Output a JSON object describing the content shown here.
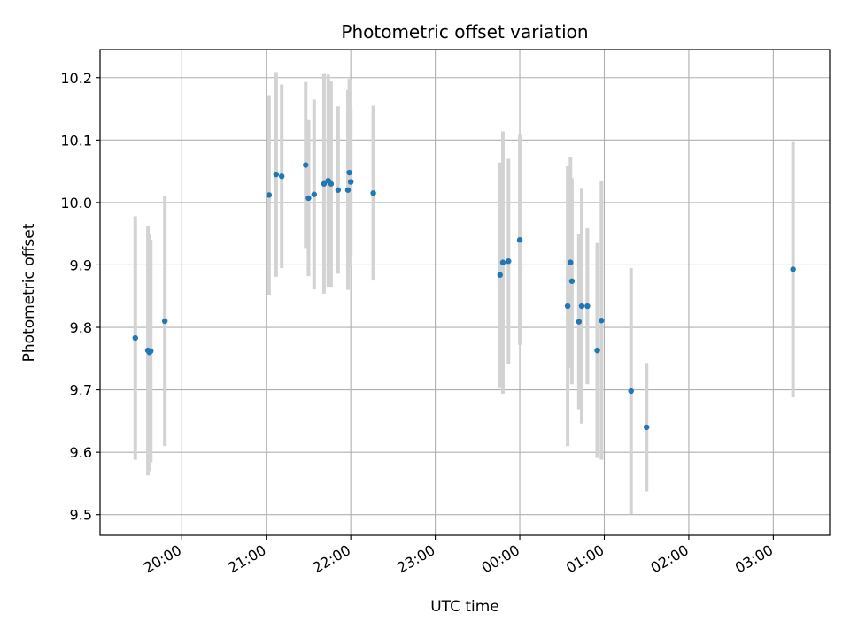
{
  "chart_data": {
    "type": "scatter",
    "title": "Photometric offset variation",
    "xlabel": "UTC time",
    "ylabel": "Photometric offset",
    "x_axis": "datetime",
    "x_tick_labels": [
      "20:00",
      "21:00",
      "22:00",
      "23:00",
      "00:00",
      "01:00",
      "02:00",
      "03:00"
    ],
    "y_ticks": [
      9.5,
      9.6,
      9.7,
      9.8,
      9.9,
      10.0,
      10.1,
      10.2
    ],
    "y_tick_labels": [
      "9.5",
      "9.6",
      "9.7",
      "9.8",
      "9.9",
      "10.0",
      "10.1",
      "10.2"
    ],
    "ylim": [
      9.467,
      10.245
    ],
    "xlim": [
      "19:02",
      "03:40"
    ],
    "grid": true,
    "point_color": "#1f77b4",
    "errorbar_color": "#d3d3d3",
    "points": [
      {
        "time": "19:27",
        "y": 9.783,
        "err": 0.195
      },
      {
        "time": "19:36",
        "y": 9.763,
        "err": 0.2
      },
      {
        "time": "19:37",
        "y": 9.76,
        "err": 0.19
      },
      {
        "time": "19:38",
        "y": 9.762,
        "err": 0.178
      },
      {
        "time": "19:48",
        "y": 9.81,
        "err": 0.2
      },
      {
        "time": "21:02",
        "y": 10.012,
        "err": 0.16
      },
      {
        "time": "21:07",
        "y": 10.045,
        "err": 0.164
      },
      {
        "time": "21:11",
        "y": 10.042,
        "err": 0.147
      },
      {
        "time": "21:28",
        "y": 10.06,
        "err": 0.133
      },
      {
        "time": "21:30",
        "y": 10.007,
        "err": 0.125
      },
      {
        "time": "21:34",
        "y": 10.013,
        "err": 0.152
      },
      {
        "time": "21:41",
        "y": 10.03,
        "err": 0.176
      },
      {
        "time": "21:44",
        "y": 10.035,
        "err": 0.17
      },
      {
        "time": "21:46",
        "y": 10.03,
        "err": 0.165
      },
      {
        "time": "21:51",
        "y": 10.02,
        "err": 0.134
      },
      {
        "time": "21:58",
        "y": 10.02,
        "err": 0.16
      },
      {
        "time": "21:59",
        "y": 10.048,
        "err": 0.15
      },
      {
        "time": "22:00",
        "y": 10.033,
        "err": 0.12
      },
      {
        "time": "22:16",
        "y": 10.015,
        "err": 0.14
      },
      {
        "time": "23:46",
        "y": 9.884,
        "err": 0.18
      },
      {
        "time": "23:48",
        "y": 9.904,
        "err": 0.21
      },
      {
        "time": "23:52",
        "y": 9.906,
        "err": 0.164
      },
      {
        "time": "00:00",
        "y": 9.94,
        "err": 0.168
      },
      {
        "time": "00:34",
        "y": 9.834,
        "err": 0.224
      },
      {
        "time": "00:36",
        "y": 9.904,
        "err": 0.169
      },
      {
        "time": "00:37",
        "y": 9.874,
        "err": 0.165
      },
      {
        "time": "00:42",
        "y": 9.809,
        "err": 0.14
      },
      {
        "time": "00:44",
        "y": 9.834,
        "err": 0.188
      },
      {
        "time": "00:48",
        "y": 9.834,
        "err": 0.125
      },
      {
        "time": "00:55",
        "y": 9.763,
        "err": 0.172
      },
      {
        "time": "00:58",
        "y": 9.811,
        "err": 0.223
      },
      {
        "time": "01:19",
        "y": 9.698,
        "err": 0.197
      },
      {
        "time": "01:30",
        "y": 9.64,
        "err": 0.103
      },
      {
        "time": "03:14",
        "y": 9.893,
        "err": 0.205
      }
    ]
  }
}
